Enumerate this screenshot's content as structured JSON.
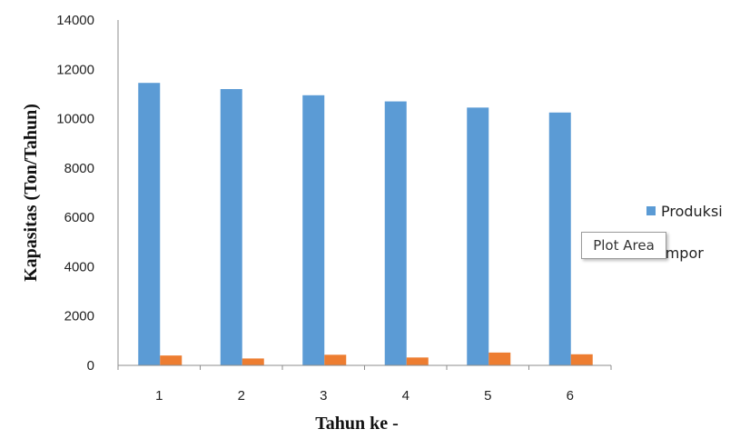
{
  "chart_data": {
    "type": "bar",
    "title": "",
    "xlabel": "Tahun ke -",
    "ylabel": "Kapasitas (Ton/Tahun)",
    "categories": [
      "1",
      "2",
      "3",
      "4",
      "5",
      "6"
    ],
    "ylim": [
      0,
      14000
    ],
    "yticks": [
      "0",
      "2000",
      "4000",
      "6000",
      "8000",
      "10000",
      "12000",
      "14000"
    ],
    "grid": false,
    "legend_position": "right",
    "series": [
      {
        "name": "Produksi",
        "color": "#5b9bd5",
        "values": [
          11450,
          11200,
          10950,
          10700,
          10450,
          10250
        ]
      },
      {
        "name": "Impor",
        "color": "#ed7d31",
        "values": [
          400,
          280,
          430,
          320,
          520,
          450
        ]
      }
    ]
  },
  "tooltip": {
    "text": "Plot Area"
  }
}
